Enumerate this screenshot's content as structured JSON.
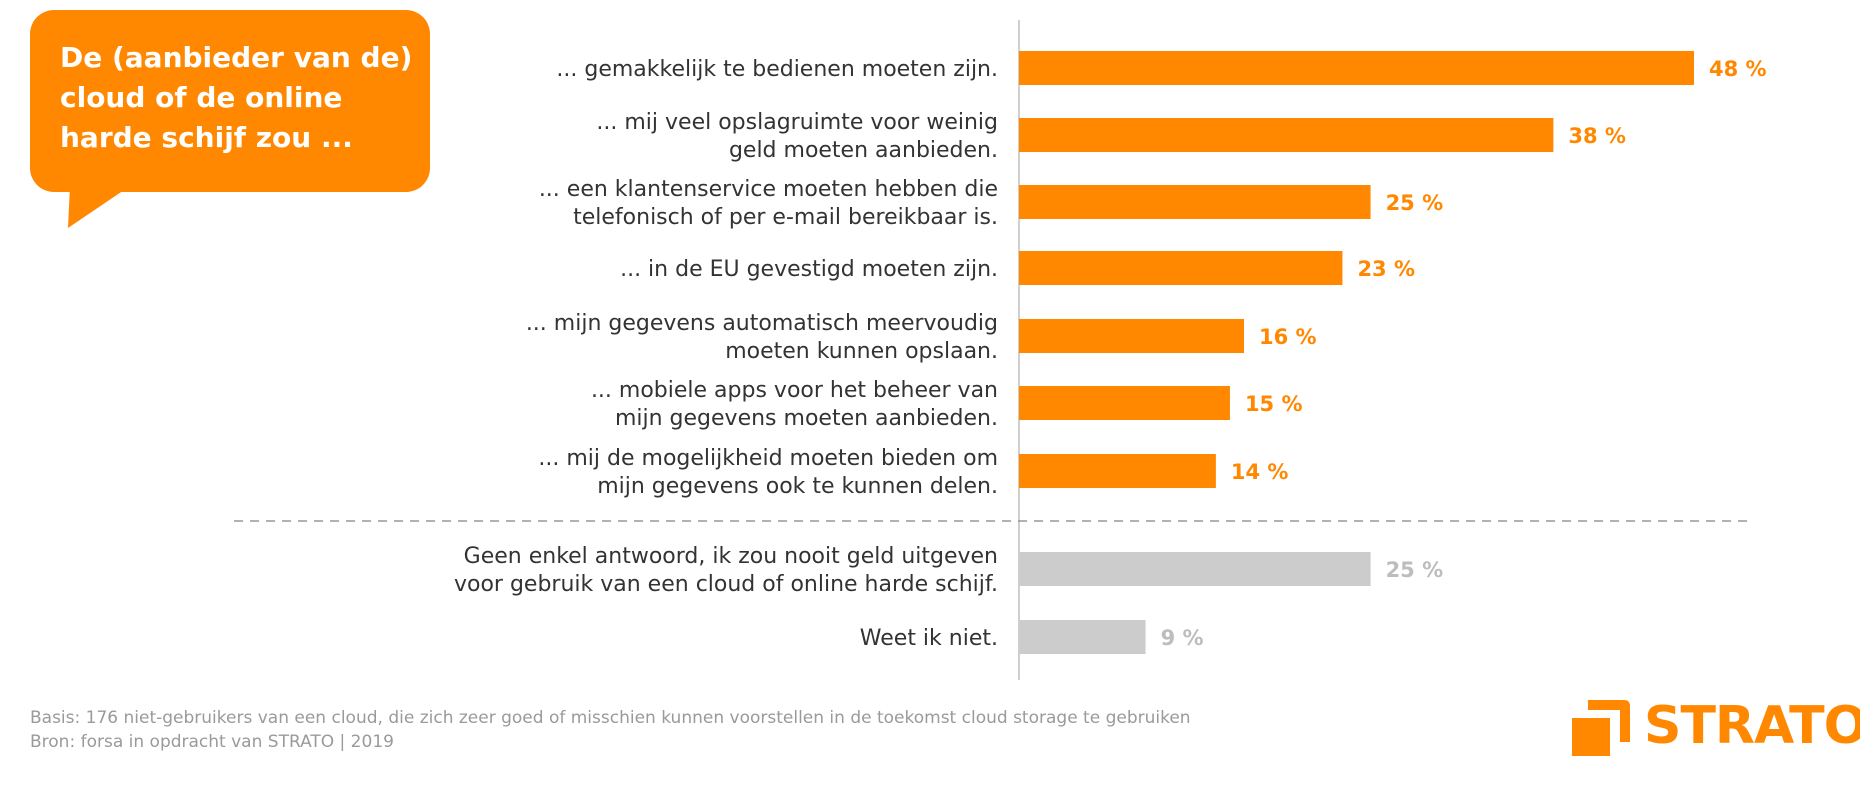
{
  "colors": {
    "accent": "#ff8800",
    "neutral_bar": "#cccccc",
    "neutral_text": "#bdbdbd",
    "label_text": "#333333",
    "axis": "#cfcfcf",
    "footer_text": "#9a9a9a"
  },
  "bubble": {
    "title_lines": [
      "De (aanbieder van de)",
      "cloud of de online",
      "harde schijf zou ..."
    ]
  },
  "chart_data": {
    "type": "bar",
    "orientation": "horizontal",
    "title": "De (aanbieder van de) cloud of de online harde schijf zou ...",
    "unit": "%",
    "xlim": [
      0,
      48
    ],
    "categories": [
      [
        "... gemakkelijk te bedienen moeten zijn."
      ],
      [
        "... mij veel opslagruimte voor weinig",
        "geld moeten aanbieden."
      ],
      [
        "... een klantenservice moeten hebben die",
        "telefonisch of per e-mail bereikbaar is."
      ],
      [
        "... in de EU gevestigd moeten zijn."
      ],
      [
        "... mijn gegevens automatisch meervoudig",
        "moeten kunnen opslaan."
      ],
      [
        "... mobiele apps voor het beheer van",
        "mijn gegevens moeten aanbieden."
      ],
      [
        "... mij de mogelijkheid moeten bieden om",
        "mijn gegevens ook te kunnen delen."
      ],
      [
        "Geen enkel antwoord, ik zou nooit geld uitgeven",
        "voor gebruik van een cloud of online harde schijf."
      ],
      [
        "Weet ik niet."
      ]
    ],
    "values": [
      48,
      38,
      25,
      23,
      16,
      15,
      14,
      25,
      9
    ],
    "value_labels": [
      "48 %",
      "38 %",
      "25 %",
      "23 %",
      "16 %",
      "15 %",
      "14 %",
      "25 %",
      "9 %"
    ],
    "highlighted": [
      true,
      true,
      true,
      true,
      true,
      true,
      true,
      false,
      false
    ],
    "separator_after_index": 6
  },
  "footer": {
    "basis": "Basis: 176 niet-gebruikers van een cloud, die zich zeer goed of misschien kunnen voorstellen in de toekomst cloud storage te gebruiken",
    "source": "Bron: forsa in opdracht van STRATO | 2019"
  },
  "logo": {
    "text": "STRATO",
    "icon": "strato-logo-icon"
  }
}
